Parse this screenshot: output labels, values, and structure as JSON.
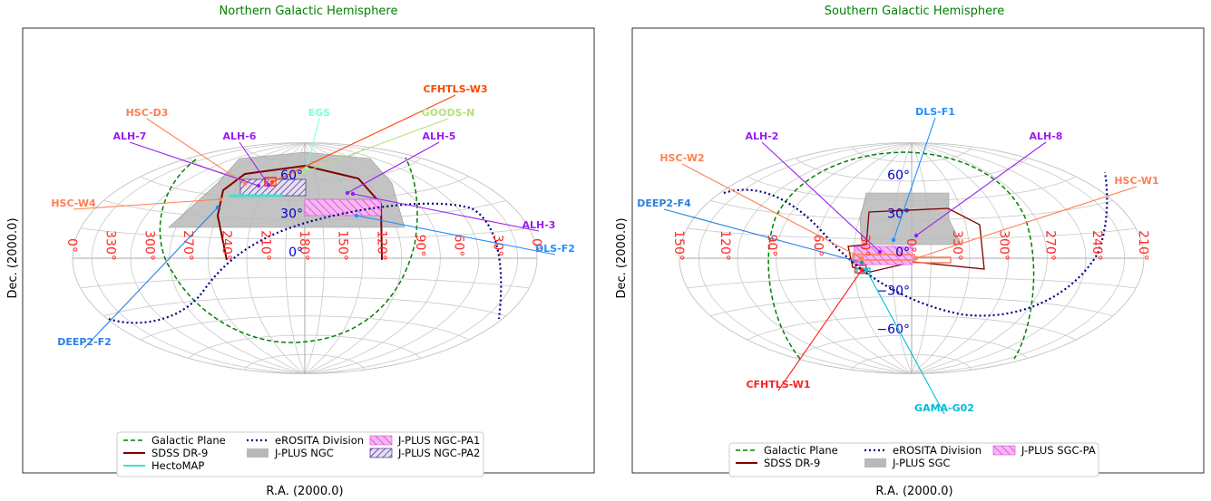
{
  "chart_data": [
    {
      "type": "scatter",
      "projection": "aitoff",
      "title": "Northern Galactic Hemisphere",
      "xlabel": "R.A. (2000.0)",
      "ylabel": "Dec. (2000.0)",
      "grid": true,
      "ra_center": 180,
      "ra_ticks": [
        "0°",
        "330°",
        "300°",
        "270°",
        "240°",
        "210°",
        "180°",
        "150°",
        "120°",
        "90°",
        "60°",
        "30°",
        "0°"
      ],
      "dec_ticks": [
        "0°",
        "30°",
        "60°"
      ],
      "legend_placement": "bottom-center",
      "legend": [
        {
          "label": "Galactic Plane",
          "style": "dashed",
          "color": "#008000"
        },
        {
          "label": "eROSITA Division",
          "style": "dotted",
          "color": "#000080"
        },
        {
          "label": "J-PLUS NGC-PA1",
          "style": "hatch",
          "color": "#e040e0"
        },
        {
          "label": "SDSS DR-9",
          "style": "solid",
          "color": "#800000"
        },
        {
          "label": "J-PLUS NGC",
          "style": "fill",
          "color": "#b8b8b8"
        },
        {
          "label": "J-PLUS NGC-PA2",
          "style": "hatch",
          "color": "#301080"
        },
        {
          "label": "HectoMAP",
          "style": "solid",
          "color": "#40e0d0"
        }
      ],
      "fields": [
        {
          "name": "HSC-D3",
          "ra": 240,
          "dec": 53,
          "color": "#ff7f50"
        },
        {
          "name": "EGS",
          "ra": 215,
          "dec": 53,
          "color": "#7fffd4"
        },
        {
          "name": "CFHTLS-W3",
          "ra": 215,
          "dec": 56,
          "color": "#ff4500"
        },
        {
          "name": "GOODS-N",
          "ra": 189,
          "dec": 62,
          "color": "#b5e07a"
        },
        {
          "name": "ALH-7",
          "ra": 240,
          "dec": 56,
          "color": "#9a1ef0"
        },
        {
          "name": "ALH-6",
          "ra": 215,
          "dec": 60,
          "color": "#9a1ef0"
        },
        {
          "name": "ALH-5",
          "ra": 150,
          "dec": 60,
          "color": "#9a1ef0"
        },
        {
          "name": "ALH-3",
          "ra": 135,
          "dec": 40,
          "color": "#9a1ef0"
        },
        {
          "name": "HSC-W4",
          "ra": 220,
          "dec": 43,
          "color": "#ff7f50"
        },
        {
          "name": "DLS-F2",
          "ra": 140,
          "dec": 30,
          "color": "#1e90ff"
        },
        {
          "name": "DEEP2-F2",
          "ra": 252,
          "dec": 35,
          "color": "#2a7fe0"
        }
      ]
    },
    {
      "type": "scatter",
      "projection": "aitoff",
      "title": "Southern Galactic Hemisphere",
      "xlabel": "R.A. (2000.0)",
      "ylabel": "Dec. (2000.0)",
      "grid": true,
      "ra_center": 0,
      "ra_ticks": [
        "150°",
        "120°",
        "90°",
        "60°",
        "30°",
        "0°",
        "330°",
        "300°",
        "270°",
        "240°",
        "210°"
      ],
      "dec_ticks": [
        "−60°",
        "−30°",
        "0°",
        "30°",
        "60°"
      ],
      "legend_placement": "bottom-center",
      "legend": [
        {
          "label": "Galactic Plane",
          "style": "dashed",
          "color": "#008000"
        },
        {
          "label": "eROSITA Division",
          "style": "dotted",
          "color": "#000080"
        },
        {
          "label": "J-PLUS SGC-PA",
          "style": "hatch",
          "color": "#e040e0"
        },
        {
          "label": "SDSS DR-9",
          "style": "solid",
          "color": "#800000"
        },
        {
          "label": "J-PLUS SGC",
          "style": "fill",
          "color": "#b8b8b8"
        }
      ],
      "fields": [
        {
          "name": "DLS-F1",
          "ra": 13,
          "dec": 12,
          "color": "#1e90ff"
        },
        {
          "name": "ALH-2",
          "ra": 35,
          "dec": 5,
          "color": "#9a1ef0"
        },
        {
          "name": "ALH-8",
          "ra": 0,
          "dec": 15,
          "color": "#9a1ef0"
        },
        {
          "name": "HSC-W2",
          "ra": 35,
          "dec": -2,
          "color": "#ff7f50"
        },
        {
          "name": "HSC-W1",
          "ra": 15,
          "dec": 0,
          "color": "#ff7f50"
        },
        {
          "name": "DEEP2-F4",
          "ra": 38,
          "dec": 2,
          "color": "#2a7fe0"
        },
        {
          "name": "CFHTLS-W1",
          "ra": 34,
          "dec": -7,
          "color": "#ff2020"
        },
        {
          "name": "GAMA-G02",
          "ra": 35,
          "dec": -6,
          "color": "#00bcd4"
        }
      ]
    }
  ]
}
